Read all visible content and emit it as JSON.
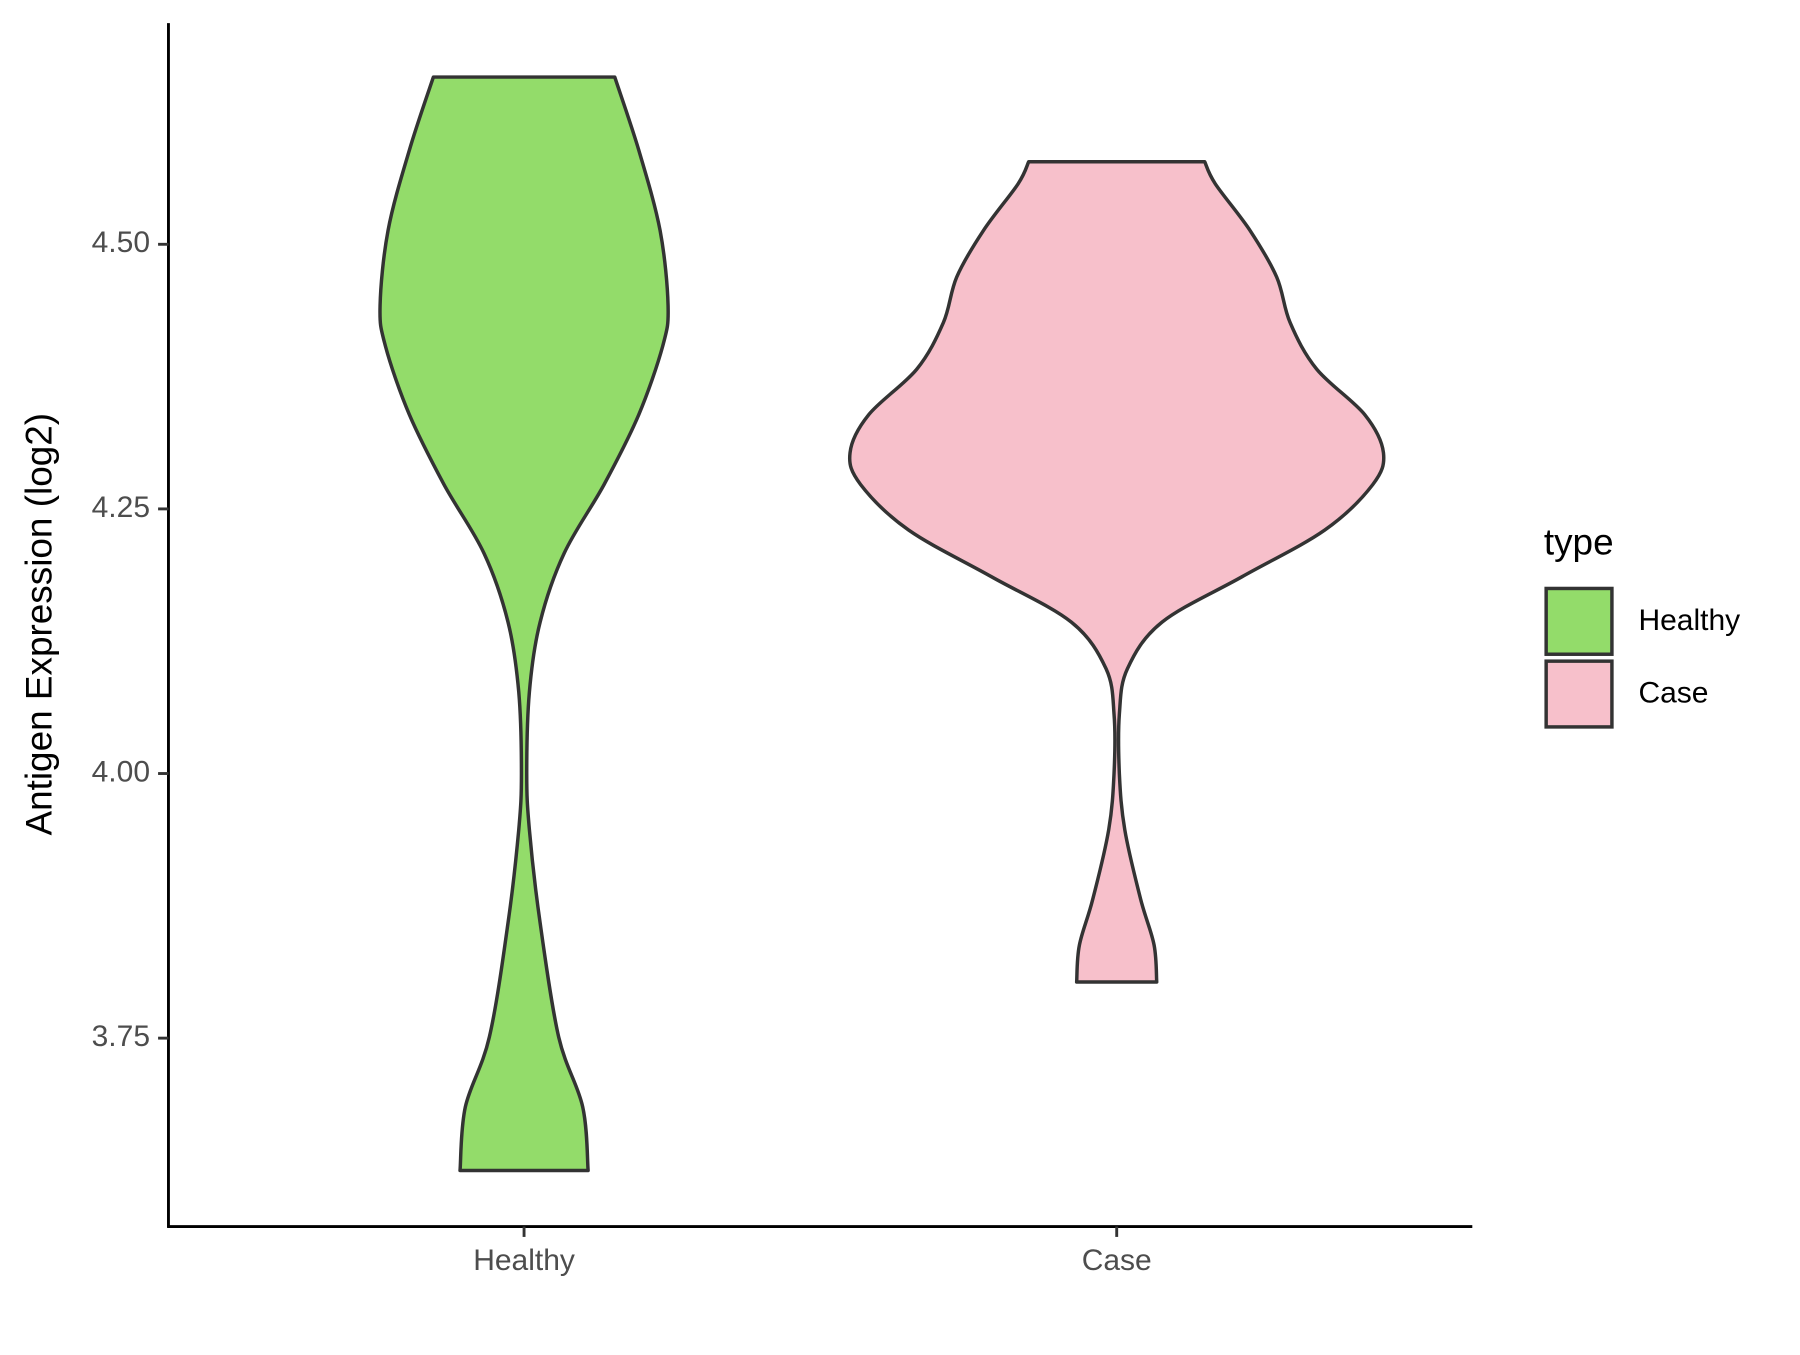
{
  "chart_data": {
    "type": "violin",
    "ylabel": "Antigen Expression (log2)",
    "categories": [
      "Healthy",
      "Case"
    ],
    "legend_title": "type",
    "legend_position": "right",
    "ylim": [
      3.572,
      4.709
    ],
    "yticks": [
      3.75,
      {
        "value": 4,
        "label": "4.00"
      },
      4.25,
      {
        "value": 4.5,
        "label": "4.50"
      }
    ],
    "outline_color": "#333333",
    "series": [
      {
        "name": "Healthy",
        "color": "#93dc6a",
        "y": [
          3.625,
          3.685,
          3.751,
          3.859,
          3.947,
          4.0,
          4.077,
          4.143,
          4.208,
          4.273,
          4.339,
          4.404,
          4.442,
          4.513,
          4.589,
          4.658
        ],
        "density": [
          0.24,
          0.22,
          0.13,
          0.06,
          0.02,
          0.01,
          0.02,
          0.06,
          0.15,
          0.3,
          0.43,
          0.52,
          0.54,
          0.51,
          0.43,
          0.34
        ]
      },
      {
        "name": "Case",
        "color": "#f7c0cb",
        "y": [
          3.803,
          3.838,
          3.881,
          3.947,
          4.0,
          4.056,
          4.099,
          4.143,
          4.186,
          4.23,
          4.273,
          4.303,
          4.339,
          4.382,
          4.426,
          4.469,
          4.513,
          4.557,
          4.578
        ],
        "density": [
          0.15,
          0.14,
          0.09,
          0.03,
          0.01,
          0.01,
          0.04,
          0.17,
          0.47,
          0.78,
          0.96,
          1.0,
          0.93,
          0.75,
          0.65,
          0.6,
          0.5,
          0.37,
          0.33
        ]
      }
    ]
  }
}
